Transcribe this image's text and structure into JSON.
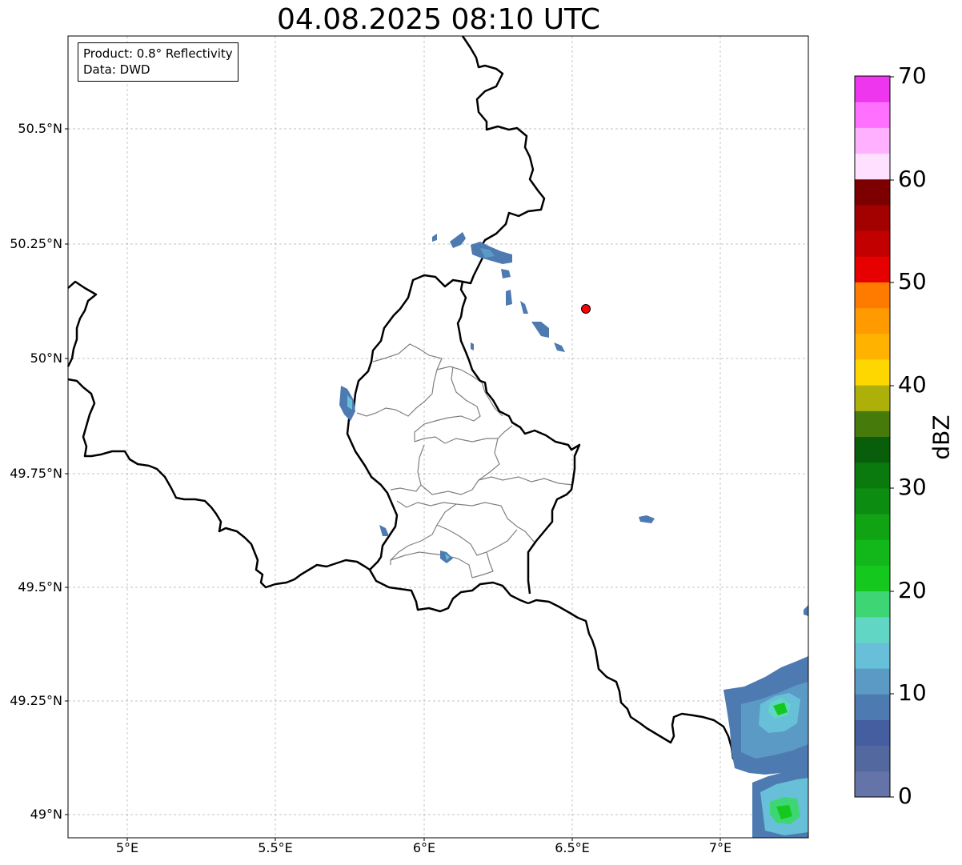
{
  "title": "04.08.2025 08:10 UTC",
  "info": {
    "product": "Product: 0.8° Reflectivity",
    "data": "Data: DWD"
  },
  "axes": {
    "lat_ticks": [
      "50.5°N",
      "50.25°N",
      "50°N",
      "49.75°N",
      "49.5°N",
      "49.25°N",
      "49°N"
    ],
    "lon_ticks": [
      "5°E",
      "5.5°E",
      "6°E",
      "6.5°E",
      "7°E"
    ]
  },
  "colorbar": {
    "label": "dBZ",
    "ticks": [
      "70",
      "60",
      "50",
      "40",
      "30",
      "20",
      "10",
      "0"
    ],
    "colors": [
      "#6473a8",
      "#5468a0",
      "#445ea0",
      "#4d7ab0",
      "#5b9ac4",
      "#68c0d8",
      "#62d6c4",
      "#3ed674",
      "#14c81e",
      "#12b81a",
      "#10a414",
      "#0c8c10",
      "#0a7a0e",
      "#085e0a",
      "#467a0a",
      "#acb008",
      "#ffd700",
      "#ffb300",
      "#ff9a00",
      "#ff7b00",
      "#e60000",
      "#c30000",
      "#a30000",
      "#7d0000",
      "#ffe0ff",
      "#ffb0ff",
      "#ff70ff",
      "#ee36ee"
    ]
  },
  "marker": {
    "name": "radar-site",
    "lat": 50.11,
    "lon": 6.55,
    "color": "#ff0000"
  },
  "colors": {
    "border": "#000000",
    "districts": "#808080",
    "grid": "#b0b0b0"
  }
}
